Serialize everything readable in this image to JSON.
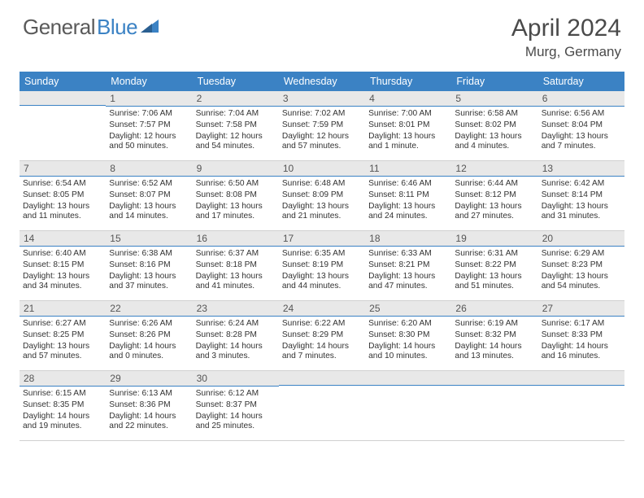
{
  "logo": {
    "general": "General",
    "blue": "Blue"
  },
  "title": "April 2024",
  "location": "Murg, Germany",
  "colors": {
    "header_bg": "#3b82c4",
    "header_text": "#ffffff",
    "daynum_bg": "#e8e8e8",
    "daynum_border": "#3b82c4",
    "cell_border": "#d0d0d0",
    "text": "#333333"
  },
  "day_names": [
    "Sunday",
    "Monday",
    "Tuesday",
    "Wednesday",
    "Thursday",
    "Friday",
    "Saturday"
  ],
  "weeks": [
    [
      {
        "day": "",
        "sunrise": "",
        "sunset": "",
        "daylight": ""
      },
      {
        "day": "1",
        "sunrise": "Sunrise: 7:06 AM",
        "sunset": "Sunset: 7:57 PM",
        "daylight": "Daylight: 12 hours and 50 minutes."
      },
      {
        "day": "2",
        "sunrise": "Sunrise: 7:04 AM",
        "sunset": "Sunset: 7:58 PM",
        "daylight": "Daylight: 12 hours and 54 minutes."
      },
      {
        "day": "3",
        "sunrise": "Sunrise: 7:02 AM",
        "sunset": "Sunset: 7:59 PM",
        "daylight": "Daylight: 12 hours and 57 minutes."
      },
      {
        "day": "4",
        "sunrise": "Sunrise: 7:00 AM",
        "sunset": "Sunset: 8:01 PM",
        "daylight": "Daylight: 13 hours and 1 minute."
      },
      {
        "day": "5",
        "sunrise": "Sunrise: 6:58 AM",
        "sunset": "Sunset: 8:02 PM",
        "daylight": "Daylight: 13 hours and 4 minutes."
      },
      {
        "day": "6",
        "sunrise": "Sunrise: 6:56 AM",
        "sunset": "Sunset: 8:04 PM",
        "daylight": "Daylight: 13 hours and 7 minutes."
      }
    ],
    [
      {
        "day": "7",
        "sunrise": "Sunrise: 6:54 AM",
        "sunset": "Sunset: 8:05 PM",
        "daylight": "Daylight: 13 hours and 11 minutes."
      },
      {
        "day": "8",
        "sunrise": "Sunrise: 6:52 AM",
        "sunset": "Sunset: 8:07 PM",
        "daylight": "Daylight: 13 hours and 14 minutes."
      },
      {
        "day": "9",
        "sunrise": "Sunrise: 6:50 AM",
        "sunset": "Sunset: 8:08 PM",
        "daylight": "Daylight: 13 hours and 17 minutes."
      },
      {
        "day": "10",
        "sunrise": "Sunrise: 6:48 AM",
        "sunset": "Sunset: 8:09 PM",
        "daylight": "Daylight: 13 hours and 21 minutes."
      },
      {
        "day": "11",
        "sunrise": "Sunrise: 6:46 AM",
        "sunset": "Sunset: 8:11 PM",
        "daylight": "Daylight: 13 hours and 24 minutes."
      },
      {
        "day": "12",
        "sunrise": "Sunrise: 6:44 AM",
        "sunset": "Sunset: 8:12 PM",
        "daylight": "Daylight: 13 hours and 27 minutes."
      },
      {
        "day": "13",
        "sunrise": "Sunrise: 6:42 AM",
        "sunset": "Sunset: 8:14 PM",
        "daylight": "Daylight: 13 hours and 31 minutes."
      }
    ],
    [
      {
        "day": "14",
        "sunrise": "Sunrise: 6:40 AM",
        "sunset": "Sunset: 8:15 PM",
        "daylight": "Daylight: 13 hours and 34 minutes."
      },
      {
        "day": "15",
        "sunrise": "Sunrise: 6:38 AM",
        "sunset": "Sunset: 8:16 PM",
        "daylight": "Daylight: 13 hours and 37 minutes."
      },
      {
        "day": "16",
        "sunrise": "Sunrise: 6:37 AM",
        "sunset": "Sunset: 8:18 PM",
        "daylight": "Daylight: 13 hours and 41 minutes."
      },
      {
        "day": "17",
        "sunrise": "Sunrise: 6:35 AM",
        "sunset": "Sunset: 8:19 PM",
        "daylight": "Daylight: 13 hours and 44 minutes."
      },
      {
        "day": "18",
        "sunrise": "Sunrise: 6:33 AM",
        "sunset": "Sunset: 8:21 PM",
        "daylight": "Daylight: 13 hours and 47 minutes."
      },
      {
        "day": "19",
        "sunrise": "Sunrise: 6:31 AM",
        "sunset": "Sunset: 8:22 PM",
        "daylight": "Daylight: 13 hours and 51 minutes."
      },
      {
        "day": "20",
        "sunrise": "Sunrise: 6:29 AM",
        "sunset": "Sunset: 8:23 PM",
        "daylight": "Daylight: 13 hours and 54 minutes."
      }
    ],
    [
      {
        "day": "21",
        "sunrise": "Sunrise: 6:27 AM",
        "sunset": "Sunset: 8:25 PM",
        "daylight": "Daylight: 13 hours and 57 minutes."
      },
      {
        "day": "22",
        "sunrise": "Sunrise: 6:26 AM",
        "sunset": "Sunset: 8:26 PM",
        "daylight": "Daylight: 14 hours and 0 minutes."
      },
      {
        "day": "23",
        "sunrise": "Sunrise: 6:24 AM",
        "sunset": "Sunset: 8:28 PM",
        "daylight": "Daylight: 14 hours and 3 minutes."
      },
      {
        "day": "24",
        "sunrise": "Sunrise: 6:22 AM",
        "sunset": "Sunset: 8:29 PM",
        "daylight": "Daylight: 14 hours and 7 minutes."
      },
      {
        "day": "25",
        "sunrise": "Sunrise: 6:20 AM",
        "sunset": "Sunset: 8:30 PM",
        "daylight": "Daylight: 14 hours and 10 minutes."
      },
      {
        "day": "26",
        "sunrise": "Sunrise: 6:19 AM",
        "sunset": "Sunset: 8:32 PM",
        "daylight": "Daylight: 14 hours and 13 minutes."
      },
      {
        "day": "27",
        "sunrise": "Sunrise: 6:17 AM",
        "sunset": "Sunset: 8:33 PM",
        "daylight": "Daylight: 14 hours and 16 minutes."
      }
    ],
    [
      {
        "day": "28",
        "sunrise": "Sunrise: 6:15 AM",
        "sunset": "Sunset: 8:35 PM",
        "daylight": "Daylight: 14 hours and 19 minutes."
      },
      {
        "day": "29",
        "sunrise": "Sunrise: 6:13 AM",
        "sunset": "Sunset: 8:36 PM",
        "daylight": "Daylight: 14 hours and 22 minutes."
      },
      {
        "day": "30",
        "sunrise": "Sunrise: 6:12 AM",
        "sunset": "Sunset: 8:37 PM",
        "daylight": "Daylight: 14 hours and 25 minutes."
      },
      {
        "day": "",
        "sunrise": "",
        "sunset": "",
        "daylight": ""
      },
      {
        "day": "",
        "sunrise": "",
        "sunset": "",
        "daylight": ""
      },
      {
        "day": "",
        "sunrise": "",
        "sunset": "",
        "daylight": ""
      },
      {
        "day": "",
        "sunrise": "",
        "sunset": "",
        "daylight": ""
      }
    ]
  ]
}
